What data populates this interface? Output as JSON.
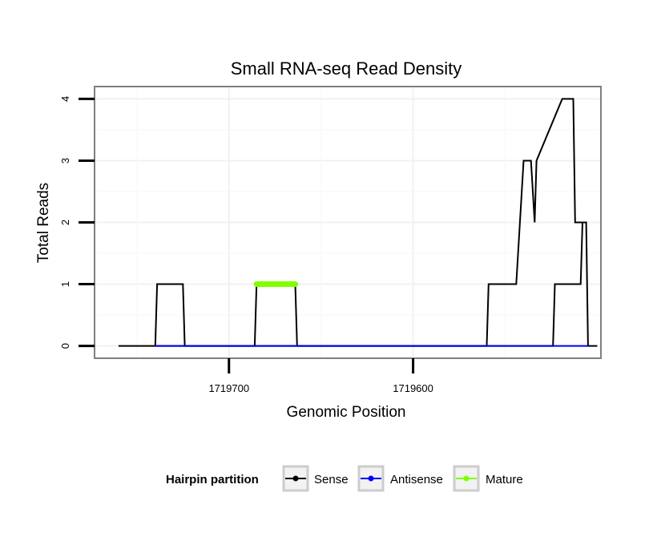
{
  "chart_data": {
    "type": "line",
    "title": "Small RNA-seq Read Density",
    "xlabel": "Genomic Position",
    "ylabel": "Total Reads",
    "x_reversed": true,
    "xlim": [
      1719773,
      1719498
    ],
    "ylim": [
      -0.2,
      4.2
    ],
    "x_ticks": [
      1719700,
      1719600
    ],
    "x_tick_labels": [
      "1719700",
      "1719600"
    ],
    "y_ticks": [
      0,
      1,
      2,
      3,
      4
    ],
    "y_tick_labels": [
      "0",
      "1",
      "2",
      "3",
      "4"
    ],
    "grid": true,
    "legend": {
      "title": "Hairpin partition",
      "position": "bottom",
      "entries": [
        {
          "label": "Sense",
          "color": "#000000"
        },
        {
          "label": "Antisense",
          "color": "#0000ff"
        },
        {
          "label": "Mature",
          "color": "#7fff00"
        }
      ]
    },
    "series": [
      {
        "name": "Sense",
        "color": "#000000",
        "x": [
          1719760,
          1719740,
          1719739,
          1719725,
          1719724,
          1719686,
          1719685,
          1719664,
          1719663,
          1719524,
          1719523,
          1719509,
          1719508,
          1719506,
          1719505,
          1719500
        ],
        "y": [
          0,
          0,
          1,
          1,
          0,
          0,
          1,
          1,
          0,
          0,
          1,
          1,
          2,
          2,
          0,
          0
        ]
      },
      {
        "name": "Sense",
        "color": "#000000",
        "x": [
          1719740,
          1719739,
          1719725,
          1719724,
          1719686,
          1719685,
          1719664,
          1719663,
          1719560,
          1719559,
          1719545,
          1719544,
          1719540,
          1719537,
          1719536,
          1719534,
          1719533,
          1719519,
          1719518,
          1719513,
          1719512,
          1719508
        ],
        "y": [
          0,
          0,
          0,
          0,
          0,
          0,
          0,
          0,
          0,
          1,
          1,
          1,
          3,
          3,
          3,
          2,
          3,
          4,
          4,
          4,
          2,
          2
        ]
      },
      {
        "name": "Antisense",
        "color": "#0000ff",
        "x": [
          1719740,
          1719724,
          1719686,
          1719663,
          1719560,
          1719505
        ],
        "y": [
          0,
          0,
          0,
          0,
          0,
          0
        ]
      },
      {
        "name": "Mature",
        "color": "#7fff00",
        "x": [
          1719685,
          1719664
        ],
        "y": [
          1,
          1
        ]
      }
    ]
  }
}
